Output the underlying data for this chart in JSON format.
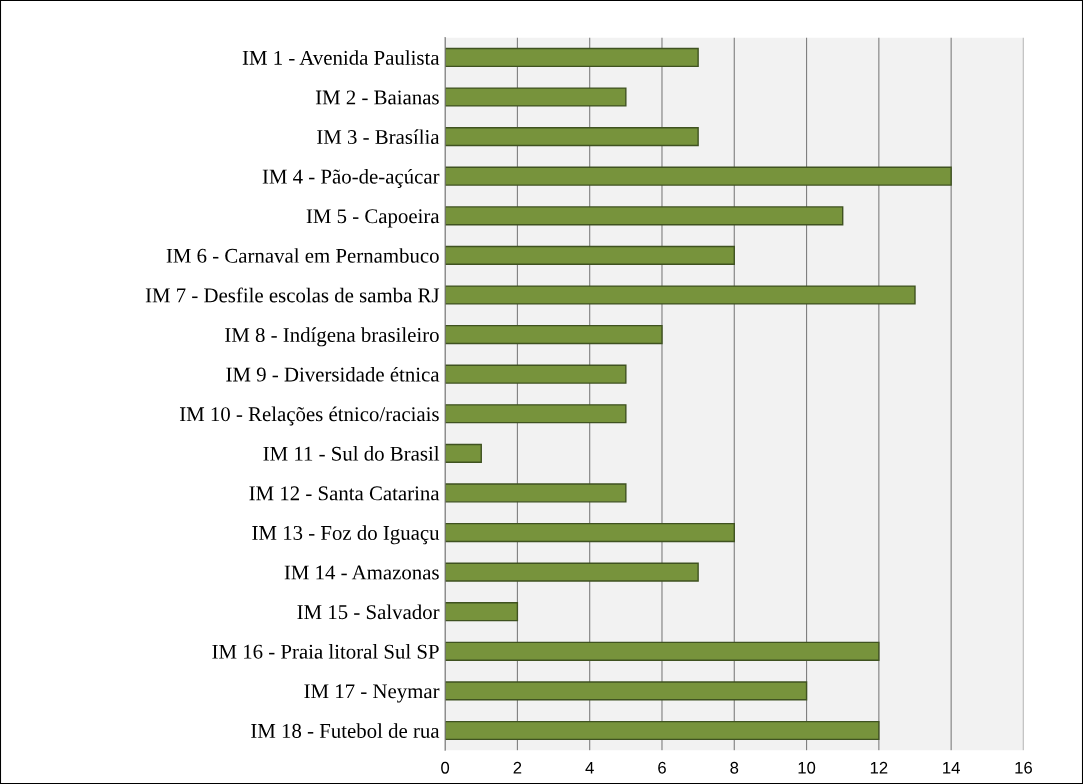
{
  "chart_data": {
    "type": "bar",
    "orientation": "horizontal",
    "categories": [
      "IM 1 - Avenida Paulista",
      "IM 2 - Baianas",
      "IM 3 - Brasília",
      "IM 4 - Pão-de-açúcar",
      "IM 5 - Capoeira",
      "IM 6 - Carnaval em Pernambuco",
      "IM 7 - Desfile escolas de samba RJ",
      "IM 8 - Indígena brasileiro",
      "IM 9 - Diversidade étnica",
      "IM 10 - Relações étnico/raciais",
      "IM 11 - Sul do Brasil",
      "IM 12 - Santa Catarina",
      "IM 13 - Foz do Iguaçu",
      "IM 14 - Amazonas",
      "IM 15 - Salvador",
      "IM 16 - Praia litoral Sul SP",
      "IM 17 - Neymar",
      "IM 18 - Futebol de rua"
    ],
    "values": [
      7,
      5,
      7,
      14,
      11,
      8,
      13,
      6,
      5,
      5,
      1,
      5,
      8,
      7,
      2,
      12,
      10,
      12
    ],
    "color": "#77933c",
    "xlim": [
      0,
      16
    ],
    "xticks": [
      0,
      2,
      4,
      6,
      8,
      10,
      12,
      14,
      16
    ],
    "grid": "x",
    "legend": false
  }
}
